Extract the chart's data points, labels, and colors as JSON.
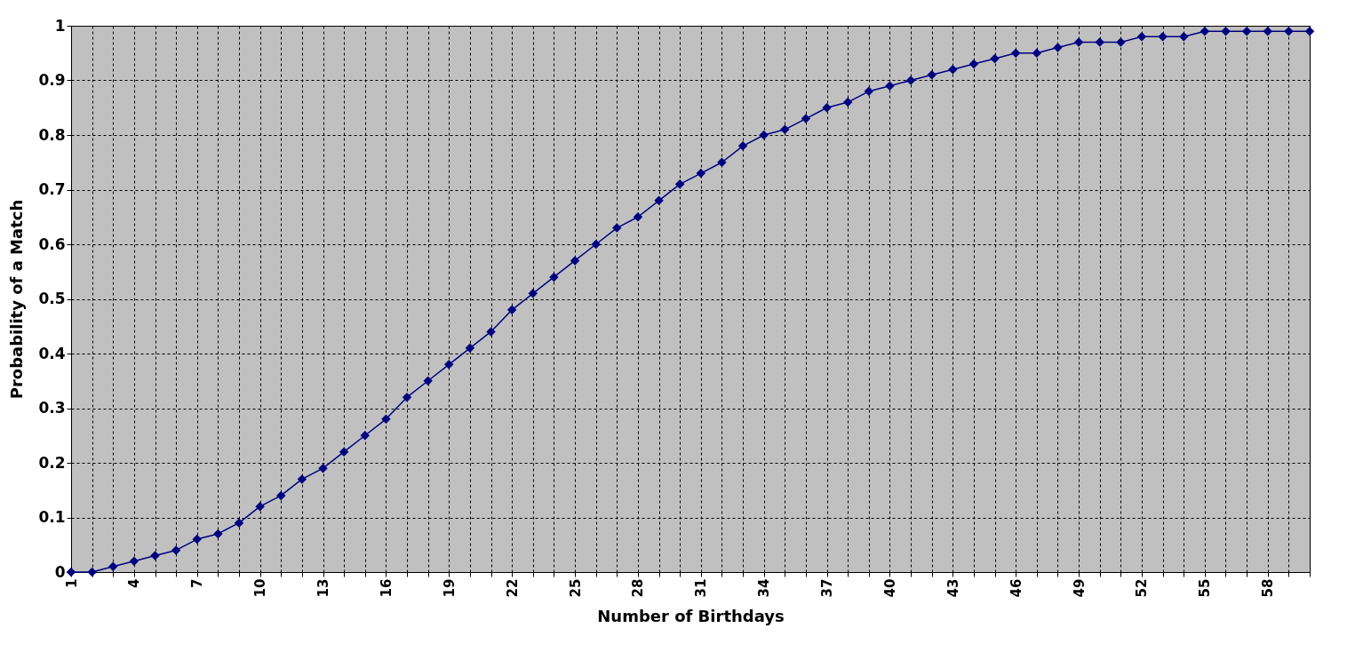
{
  "chart_data": {
    "type": "line",
    "xlabel": "Number of Birthdays",
    "ylabel": "Probability of a Match",
    "categories": [
      "1",
      null,
      null,
      "4",
      null,
      null,
      "7",
      null,
      null,
      "10",
      null,
      null,
      "13",
      null,
      null,
      "16",
      null,
      null,
      "19",
      null,
      null,
      "22",
      null,
      null,
      "25",
      null,
      null,
      "28",
      null,
      null,
      "31",
      null,
      null,
      "34",
      null,
      null,
      "37",
      null,
      null,
      "40",
      null,
      null,
      "43",
      null,
      null,
      "46",
      null,
      null,
      "49",
      null,
      null,
      "52",
      null,
      null,
      "55",
      null,
      null,
      "58",
      null,
      null
    ],
    "series": [
      {
        "color": "#000080",
        "values": [
          0,
          0,
          0.01,
          0.02,
          0.03,
          0.04,
          0.06,
          0.07,
          0.09,
          0.12,
          0.14,
          0.17,
          0.19,
          0.22,
          0.25,
          0.28,
          0.32,
          0.35,
          0.38,
          0.41,
          0.44,
          0.48,
          0.51,
          0.54,
          0.57,
          0.6,
          0.63,
          0.65,
          0.68,
          0.71,
          0.73,
          0.75,
          0.78,
          0.8,
          0.81,
          0.83,
          0.85,
          0.86,
          0.88,
          0.89,
          0.9,
          0.91,
          0.92,
          0.93,
          0.94,
          0.95,
          0.95,
          0.96,
          0.97,
          0.97,
          0.97,
          0.98,
          0.98,
          0.98,
          0.99,
          0.99,
          0.99,
          0.99,
          0.99,
          0.99
        ]
      }
    ],
    "ylim": [
      0,
      1
    ],
    "yticks": [
      0,
      0.1,
      0.2,
      0.3,
      0.4,
      0.5,
      0.6,
      0.7,
      0.8,
      0.9,
      1
    ],
    "grid": true,
    "legend": false,
    "marker": "diamond",
    "line_style": "solid"
  }
}
